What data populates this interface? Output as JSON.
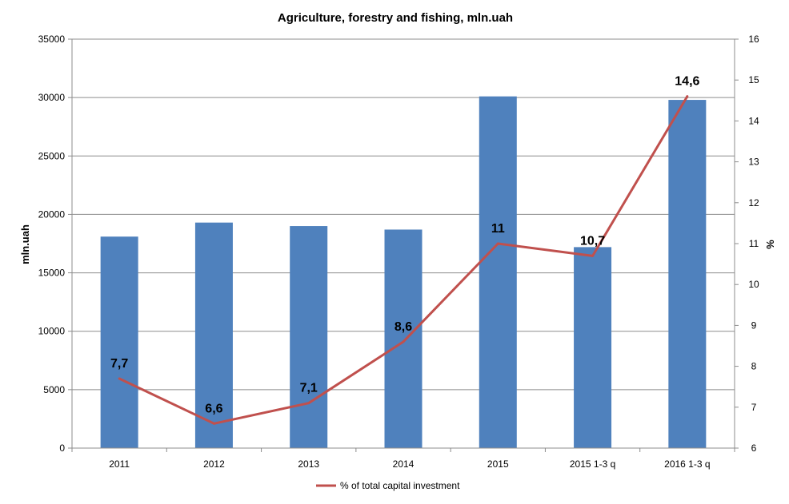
{
  "chart_data": {
    "type": "bar",
    "title": "Agriculture, forestry and fishing, mln.uah",
    "categories": [
      "2011",
      "2012",
      "2013",
      "2014",
      "2015",
      "2015 1-3 q",
      "2016 1-3 q"
    ],
    "series": [
      {
        "kind": "bar",
        "axis": "left",
        "color": "#4F81BD",
        "values": [
          18100,
          19300,
          19000,
          18700,
          30100,
          17200,
          29800
        ]
      },
      {
        "name": "% of total capital investment",
        "kind": "line",
        "axis": "right",
        "color": "#C0504D",
        "values": [
          7.7,
          6.6,
          7.1,
          8.6,
          11,
          10.7,
          14.6
        ],
        "data_labels": [
          "7,7",
          "6,6",
          "7,1",
          "8,6",
          "11",
          "10,7",
          "14,6"
        ]
      }
    ],
    "ylabel": "mln.uah",
    "ylim": [
      0,
      35000
    ],
    "yticks": [
      0,
      5000,
      10000,
      15000,
      20000,
      25000,
      30000,
      35000
    ],
    "y2label": "%",
    "y2lim": [
      6,
      16
    ],
    "y2ticks": [
      6,
      7,
      8,
      9,
      10,
      11,
      12,
      13,
      14,
      15,
      16
    ],
    "grid": true,
    "legend_position": "bottom"
  }
}
